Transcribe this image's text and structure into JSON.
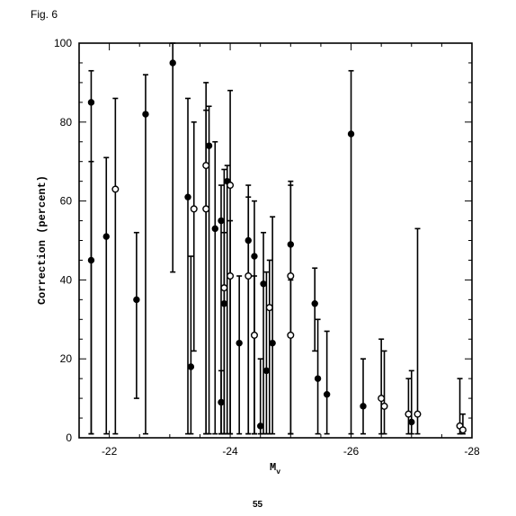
{
  "figure_label": "Fig. 6",
  "page_number": "55",
  "chart_data": {
    "type": "scatter",
    "xlabel": "M",
    "xlabel_subscript": "v",
    "ylabel": "Correction (percent)",
    "xlim": [
      -21.5,
      -28.0
    ],
    "ylim": [
      0,
      100
    ],
    "x_ticks": [
      -22,
      -24,
      -26,
      -28
    ],
    "y_ticks": [
      0,
      20,
      40,
      60,
      80,
      100
    ],
    "grid": false,
    "series": [
      {
        "marker": "filled-circle",
        "points": [
          {
            "x": -21.7,
            "y": 85,
            "lo": 1,
            "hi": 93
          },
          {
            "x": -21.7,
            "y": 45,
            "lo": 1,
            "hi": 70
          },
          {
            "x": -21.95,
            "y": 51,
            "lo": 1,
            "hi": 71
          },
          {
            "x": -22.45,
            "y": 35,
            "lo": 10,
            "hi": 52
          },
          {
            "x": -22.6,
            "y": 82,
            "lo": 1,
            "hi": 92
          },
          {
            "x": -23.05,
            "y": 95,
            "lo": 42,
            "hi": 100
          },
          {
            "x": -23.3,
            "y": 61,
            "lo": 1,
            "hi": 86
          },
          {
            "x": -23.35,
            "y": 18,
            "lo": 1,
            "hi": 46
          },
          {
            "x": -23.65,
            "y": 74,
            "lo": 1,
            "hi": 84
          },
          {
            "x": -23.75,
            "y": 53,
            "lo": 1,
            "hi": 75
          },
          {
            "x": -23.85,
            "y": 55,
            "lo": 1,
            "hi": 64
          },
          {
            "x": -23.85,
            "y": 9,
            "lo": 1,
            "hi": 17
          },
          {
            "x": -23.9,
            "y": 34,
            "lo": 1,
            "hi": 52
          },
          {
            "x": -23.95,
            "y": 65,
            "lo": 1,
            "hi": 69
          },
          {
            "x": -24.15,
            "y": 24,
            "lo": 1,
            "hi": 41
          },
          {
            "x": -24.3,
            "y": 50,
            "lo": 1,
            "hi": 61
          },
          {
            "x": -24.4,
            "y": 46,
            "lo": 1,
            "hi": 60
          },
          {
            "x": -24.5,
            "y": 3,
            "lo": 1,
            "hi": 20
          },
          {
            "x": -24.55,
            "y": 39,
            "lo": 1,
            "hi": 52
          },
          {
            "x": -24.6,
            "y": 17,
            "lo": 1,
            "hi": 42
          },
          {
            "x": -24.7,
            "y": 24,
            "lo": 1,
            "hi": 56
          },
          {
            "x": -25.0,
            "y": 49,
            "lo": 1,
            "hi": 64
          },
          {
            "x": -25.4,
            "y": 34,
            "lo": 22,
            "hi": 43
          },
          {
            "x": -25.45,
            "y": 15,
            "lo": 1,
            "hi": 30
          },
          {
            "x": -25.6,
            "y": 11,
            "lo": 1,
            "hi": 27
          },
          {
            "x": -26.0,
            "y": 77,
            "lo": 1,
            "hi": 93
          },
          {
            "x": -26.2,
            "y": 8,
            "lo": 1,
            "hi": 20
          },
          {
            "x": -27.0,
            "y": 4,
            "lo": 1,
            "hi": 17
          }
        ]
      },
      {
        "marker": "open-circle",
        "points": [
          {
            "x": -22.1,
            "y": 63,
            "lo": 1,
            "hi": 86
          },
          {
            "x": -23.4,
            "y": 58,
            "lo": 22,
            "hi": 80
          },
          {
            "x": -23.6,
            "y": 69,
            "lo": 1,
            "hi": 90
          },
          {
            "x": -23.6,
            "y": 58,
            "lo": 1,
            "hi": 83
          },
          {
            "x": -23.9,
            "y": 38,
            "lo": 1,
            "hi": 68
          },
          {
            "x": -24.0,
            "y": 64,
            "lo": 1,
            "hi": 88
          },
          {
            "x": -24.0,
            "y": 41,
            "lo": 1,
            "hi": 55
          },
          {
            "x": -24.3,
            "y": 41,
            "lo": 1,
            "hi": 64
          },
          {
            "x": -24.4,
            "y": 26,
            "lo": 1,
            "hi": 41
          },
          {
            "x": -24.65,
            "y": 33,
            "lo": 1,
            "hi": 45
          },
          {
            "x": -25.0,
            "y": 41,
            "lo": 1,
            "hi": 65
          },
          {
            "x": -25.0,
            "y": 26,
            "lo": 1,
            "hi": 40
          },
          {
            "x": -26.5,
            "y": 10,
            "lo": 1,
            "hi": 25
          },
          {
            "x": -26.55,
            "y": 8,
            "lo": 1,
            "hi": 22
          },
          {
            "x": -26.95,
            "y": 6,
            "lo": 1,
            "hi": 15
          },
          {
            "x": -27.1,
            "y": 6,
            "lo": 1,
            "hi": 53
          },
          {
            "x": -27.8,
            "y": 3,
            "lo": 1,
            "hi": 15
          },
          {
            "x": -27.85,
            "y": 2,
            "lo": 1,
            "hi": 6
          }
        ]
      }
    ]
  }
}
